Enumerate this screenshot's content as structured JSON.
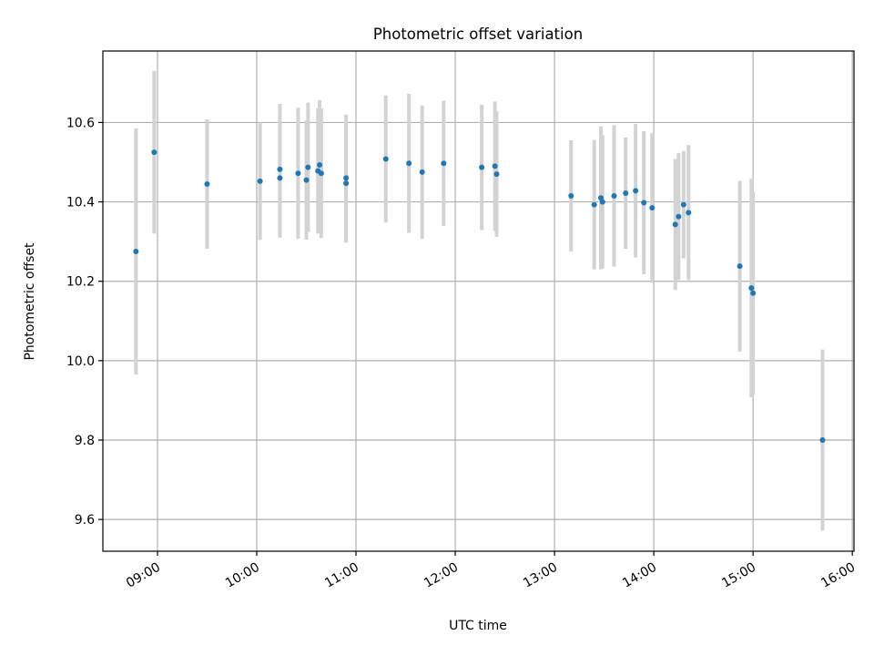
{
  "chart_data": {
    "type": "scatter",
    "title": "Photometric offset variation",
    "xlabel": "UTC time",
    "ylabel": "Photometric offset",
    "x_tick_labels": [
      "09:00",
      "10:00",
      "11:00",
      "12:00",
      "13:00",
      "14:00",
      "15:00",
      "16:00"
    ],
    "y_tick_labels": [
      "9.6",
      "9.8",
      "10.0",
      "10.2",
      "10.4",
      "10.6"
    ],
    "xlim": [
      "08:27",
      "16:01"
    ],
    "ylim": [
      9.52,
      10.78
    ],
    "grid": true,
    "point_color": "#1f77b4",
    "errorbar_color": "#d3d3d3",
    "series": [
      {
        "points": [
          {
            "x": "08:47",
            "y": 10.275,
            "err": 0.31
          },
          {
            "x": "08:58",
            "y": 10.525,
            "err": 0.205
          },
          {
            "x": "09:30",
            "y": 10.445,
            "err": 0.163
          },
          {
            "x": "10:02",
            "y": 10.452,
            "err": 0.148
          },
          {
            "x": "10:14",
            "y": 10.46,
            "err": 0.15
          },
          {
            "x": "10:14",
            "y": 10.482,
            "err": 0.165
          },
          {
            "x": "10:25",
            "y": 10.472,
            "err": 0.165
          },
          {
            "x": "10:30",
            "y": 10.455,
            "err": 0.15
          },
          {
            "x": "10:31",
            "y": 10.487,
            "err": 0.163
          },
          {
            "x": "10:37",
            "y": 10.478,
            "err": 0.158
          },
          {
            "x": "10:38",
            "y": 10.493,
            "err": 0.163
          },
          {
            "x": "10:39",
            "y": 10.472,
            "err": 0.163
          },
          {
            "x": "10:54",
            "y": 10.447,
            "err": 0.15
          },
          {
            "x": "10:54",
            "y": 10.46,
            "err": 0.16
          },
          {
            "x": "11:18",
            "y": 10.508,
            "err": 0.16
          },
          {
            "x": "11:32",
            "y": 10.497,
            "err": 0.175
          },
          {
            "x": "11:40",
            "y": 10.475,
            "err": 0.168
          },
          {
            "x": "11:53",
            "y": 10.497,
            "err": 0.158
          },
          {
            "x": "12:16",
            "y": 10.487,
            "err": 0.158
          },
          {
            "x": "12:24",
            "y": 10.49,
            "err": 0.163
          },
          {
            "x": "12:25",
            "y": 10.47,
            "err": 0.158
          },
          {
            "x": "13:10",
            "y": 10.415,
            "err": 0.14
          },
          {
            "x": "13:24",
            "y": 10.393,
            "err": 0.163
          },
          {
            "x": "13:28",
            "y": 10.41,
            "err": 0.18
          },
          {
            "x": "13:29",
            "y": 10.4,
            "err": 0.168
          },
          {
            "x": "13:36",
            "y": 10.415,
            "err": 0.178
          },
          {
            "x": "13:43",
            "y": 10.422,
            "err": 0.14
          },
          {
            "x": "13:49",
            "y": 10.428,
            "err": 0.168
          },
          {
            "x": "13:54",
            "y": 10.398,
            "err": 0.18
          },
          {
            "x": "13:59",
            "y": 10.385,
            "err": 0.188
          },
          {
            "x": "14:13",
            "y": 10.343,
            "err": 0.165
          },
          {
            "x": "14:15",
            "y": 10.363,
            "err": 0.16
          },
          {
            "x": "14:18",
            "y": 10.393,
            "err": 0.135
          },
          {
            "x": "14:21",
            "y": 10.373,
            "err": 0.17
          },
          {
            "x": "14:52",
            "y": 10.238,
            "err": 0.215
          },
          {
            "x": "14:59",
            "y": 10.183,
            "err": 0.275
          },
          {
            "x": "15:00",
            "y": 10.17,
            "err": 0.255
          },
          {
            "x": "15:42",
            "y": 9.8,
            "err": 0.228
          }
        ]
      }
    ]
  }
}
